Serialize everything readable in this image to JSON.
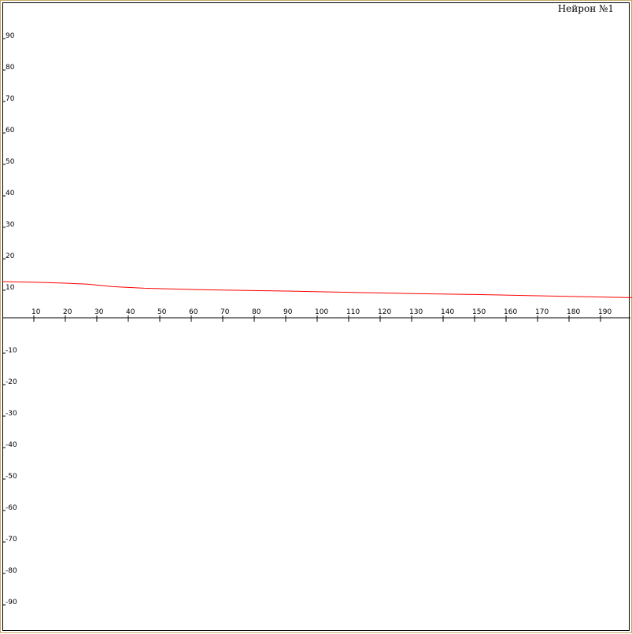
{
  "chart_data": {
    "type": "line",
    "title": "Нейрон №1",
    "xlabel": "",
    "ylabel": "",
    "xlim": [
      0,
      200
    ],
    "ylim": [
      -100,
      100
    ],
    "x_ticks": [
      10,
      20,
      30,
      40,
      50,
      60,
      70,
      80,
      90,
      100,
      110,
      120,
      130,
      140,
      150,
      160,
      170,
      180,
      190
    ],
    "y_ticks": [
      90,
      80,
      70,
      60,
      50,
      40,
      30,
      20,
      10,
      -10,
      -20,
      -30,
      -40,
      -50,
      -60,
      -70,
      -80,
      -90
    ],
    "grid": false,
    "series": [
      {
        "color": "#ff0000",
        "x": [
          0,
          10,
          20,
          27,
          35,
          45,
          60,
          70,
          90,
          110,
          130,
          150,
          170,
          190,
          200
        ],
        "y": [
          11.5,
          11.3,
          11.0,
          10.7,
          9.9,
          9.4,
          9.0,
          8.8,
          8.5,
          8.1,
          7.7,
          7.4,
          7.0,
          6.6,
          6.4
        ]
      }
    ]
  }
}
